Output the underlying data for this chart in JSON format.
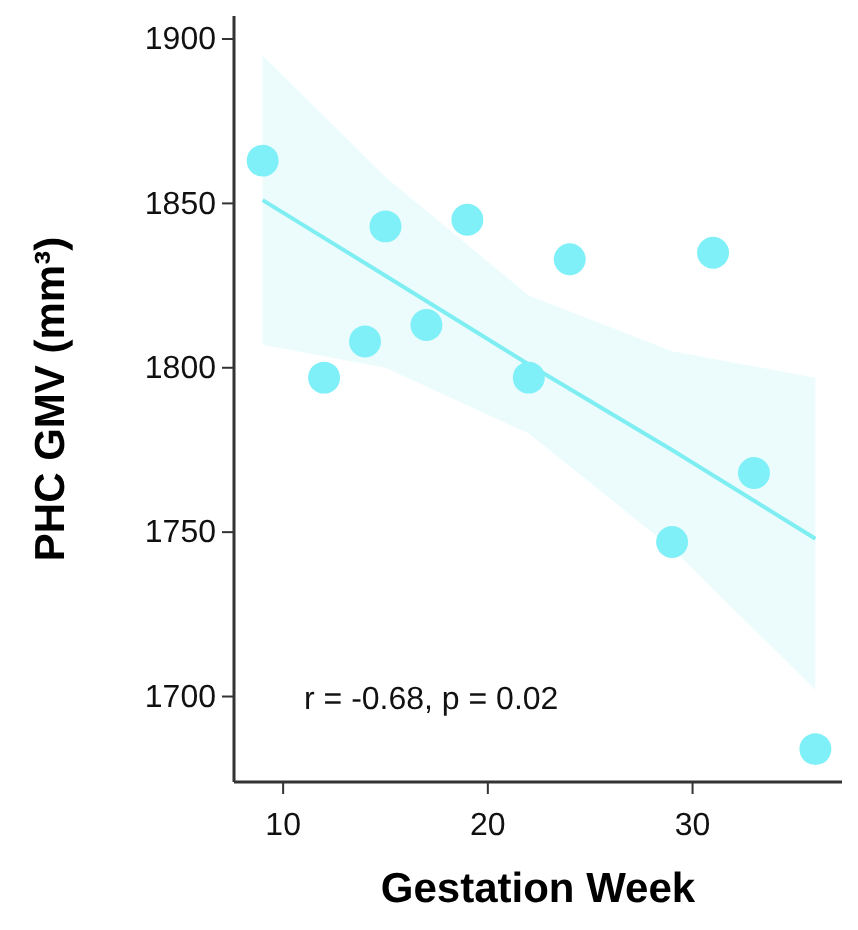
{
  "chart_data": {
    "type": "scatter",
    "xlabel": "Gestation Week",
    "ylabel": "PHC GMV (mm³)",
    "xlim": [
      7.6,
      37.3
    ],
    "ylim": [
      1674,
      1907
    ],
    "xticks": [
      10,
      20,
      30
    ],
    "yticks": [
      1700,
      1750,
      1800,
      1850,
      1900
    ],
    "grid": false,
    "annotations": [
      "r = -0.68, p = 0.02"
    ],
    "series": [
      {
        "marker": "circle",
        "color": "#7ff0f7",
        "x": [
          9,
          12,
          14,
          15,
          17,
          19,
          22,
          24,
          29,
          31,
          33,
          36
        ],
        "values": [
          1863,
          1797,
          1808,
          1843,
          1813,
          1845,
          1797,
          1833,
          1747,
          1835,
          1768,
          1684
        ]
      },
      {
        "type": "line",
        "color": "#7feef2",
        "line_style": "solid",
        "x": [
          9,
          15,
          22,
          29,
          36
        ],
        "values": [
          1851,
          1828,
          1801,
          1775,
          1748
        ],
        "lower": [
          1807,
          1800,
          1780,
          1745,
          1702
        ],
        "upper": [
          1895,
          1858,
          1822,
          1805,
          1797
        ]
      }
    ]
  }
}
